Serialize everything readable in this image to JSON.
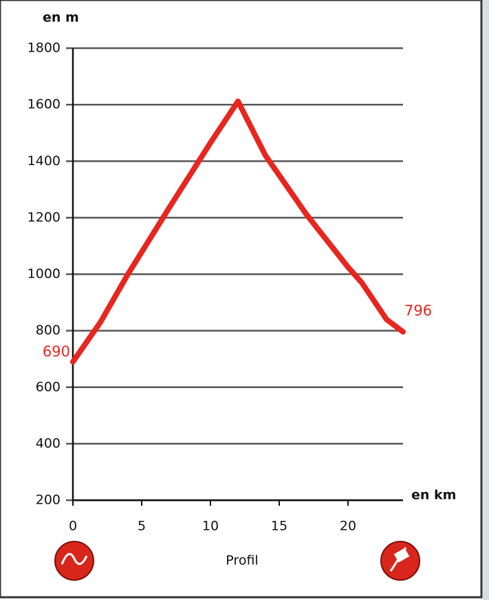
{
  "chart_data": {
    "type": "line",
    "y_label": "en m",
    "x_label": "en km",
    "caption": "Profil",
    "x": [
      0,
      2,
      4,
      7,
      10,
      12,
      14,
      17,
      20,
      21,
      22.8,
      24
    ],
    "series": [
      {
        "color": "#e8251f",
        "values": [
          690,
          830,
          1000,
          1235,
          1465,
          1612,
          1420,
          1210,
          1025,
          970,
          840,
          796
        ],
        "value_labels": [
          "690",
          null,
          null,
          null,
          null,
          null,
          null,
          null,
          null,
          null,
          null,
          "796"
        ]
      }
    ],
    "xlim": [
      0,
      24
    ],
    "xticks": [
      0,
      5,
      10,
      15,
      20
    ],
    "ylim": [
      200,
      1800
    ],
    "yticks": [
      200,
      400,
      600,
      800,
      1000,
      1200,
      1400,
      1600,
      1800
    ],
    "grid": true
  }
}
